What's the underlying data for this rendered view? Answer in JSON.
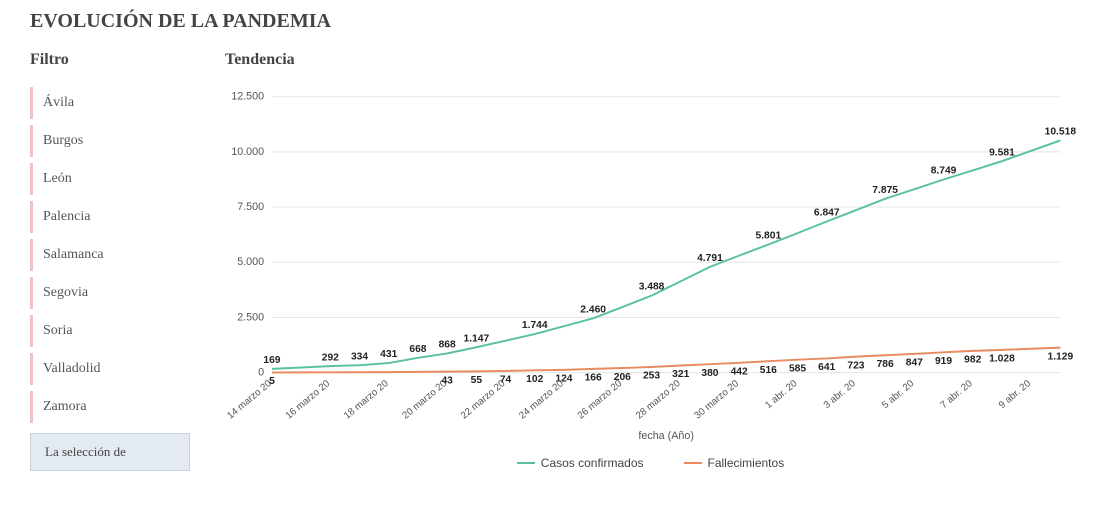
{
  "title": "EVOLUCIÓN DE LA PANDEMIA",
  "filter": {
    "title": "Filtro",
    "items": [
      "Ávila",
      "Burgos",
      "León",
      "Palencia",
      "Salamanca",
      "Segovia",
      "Soria",
      "Valladolid",
      "Zamora"
    ]
  },
  "selection_box": "La selección de",
  "chart": {
    "title": "Tendencia",
    "type": "line",
    "x_label": "fecha (Año)",
    "x_categories": [
      "14 marzo 20",
      "16 marzo 20",
      "18 marzo 20",
      "20 marzo 20",
      "22 marzo 20",
      "24 marzo 20",
      "26 marzo 20",
      "28 marzo 20",
      "30 marzo 20",
      "1 abr. 20",
      "3 abr. 20",
      "5 abr. 20",
      "7 abr. 20",
      "9 abr. 20"
    ],
    "x_tick_every": 2,
    "y_ticks": [
      0,
      2500,
      5000,
      7500,
      10000,
      12500
    ],
    "y_tick_labels": [
      "0",
      "2.500",
      "5.000",
      "7.500",
      "10.000",
      "12.500"
    ],
    "ylim": [
      0,
      12500
    ],
    "series": [
      {
        "name": "Casos confirmados",
        "color": "#5bbfa4",
        "line_width": 2,
        "labels": [
          "169",
          "",
          "292",
          "334",
          "431",
          "668",
          "868",
          "1.147",
          "",
          "1.744",
          "",
          "2.460",
          "",
          "3.488",
          "",
          "4.791",
          "",
          "5.801",
          "",
          "6.847",
          "",
          "7.875",
          "",
          "8.749",
          "",
          "9.581",
          "",
          "10.518"
        ],
        "values": [
          169,
          230,
          292,
          334,
          431,
          668,
          868,
          1147,
          1445,
          1744,
          2100,
          2460,
          2970,
          3488,
          4140,
          4791,
          5300,
          5801,
          6320,
          6847,
          7360,
          7875,
          8310,
          8749,
          9160,
          9581,
          10050,
          10518
        ]
      },
      {
        "name": "Fallecimientos",
        "color": "#e88b5f",
        "line_width": 2,
        "labels": [
          "5",
          "",
          "",
          "",
          "",
          "",
          "43",
          "55",
          "74",
          "102",
          "124",
          "166",
          "206",
          "253",
          "321",
          "380",
          "442",
          "516",
          "585",
          "641",
          "723",
          "786",
          "847",
          "919",
          "982",
          "1.028",
          "",
          "1.129"
        ],
        "values": [
          5,
          8,
          12,
          16,
          22,
          30,
          43,
          55,
          74,
          102,
          124,
          166,
          206,
          253,
          321,
          380,
          442,
          516,
          585,
          641,
          723,
          786,
          847,
          919,
          982,
          1028,
          1078,
          1129
        ]
      }
    ],
    "background_color": "#ffffff",
    "grid_color": "#e5e5e5",
    "label_fontsize": 10.5
  }
}
